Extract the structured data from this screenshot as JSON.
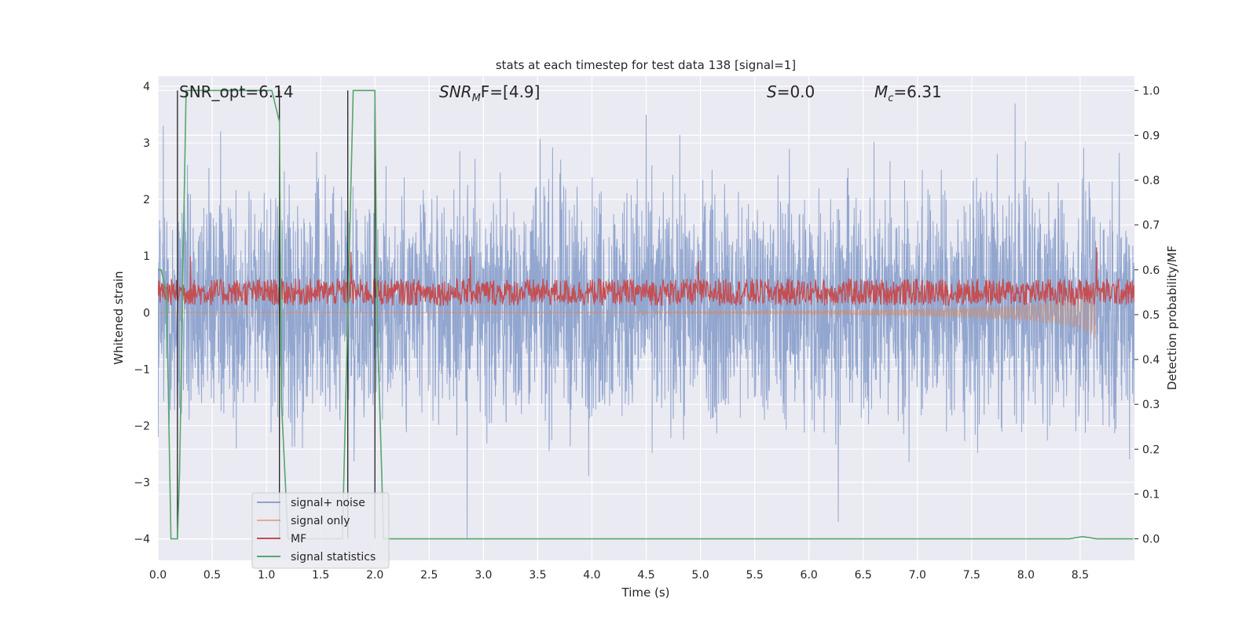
{
  "chart_data": {
    "type": "line",
    "title": "stats at each timestep for test data 138 [signal=1]",
    "xlabel": "Time (s)",
    "ylabel_left": "Whitened strain",
    "ylabel_right": "Detection probability/MF",
    "xlim": [
      0,
      9.0
    ],
    "ylim_left": [
      -4.38,
      4.18
    ],
    "ylim_right": [
      -0.048,
      1.032
    ],
    "x_ticks": [
      0.0,
      0.5,
      1.0,
      1.5,
      2.0,
      2.5,
      3.0,
      3.5,
      4.0,
      4.5,
      5.0,
      5.5,
      6.0,
      6.5,
      7.0,
      7.5,
      8.0,
      8.5
    ],
    "x_tick_labels": [
      "0.0",
      "0.5",
      "1.0",
      "1.5",
      "2.0",
      "2.5",
      "3.0",
      "3.5",
      "4.0",
      "4.5",
      "5.0",
      "5.5",
      "6.0",
      "6.5",
      "7.0",
      "7.5",
      "8.0",
      "8.5"
    ],
    "y_left_ticks": [
      4,
      3,
      2,
      1,
      0,
      -1,
      -2,
      -3,
      -4
    ],
    "y_left_tick_labels": [
      "4",
      "3",
      "2",
      "1",
      "0",
      "−1",
      "−2",
      "−3",
      "−4"
    ],
    "y_right_ticks": [
      1.0,
      0.9,
      0.8,
      0.7,
      0.6,
      0.5,
      0.4,
      0.3,
      0.2,
      0.1,
      0.0
    ],
    "y_right_tick_labels": [
      "1.0",
      "0.9",
      "0.8",
      "0.7",
      "0.6",
      "0.5",
      "0.4",
      "0.3",
      "0.2",
      "0.1",
      "0.0"
    ],
    "grid": true,
    "legend_position": "lower-left",
    "annotations": {
      "snr_opt": "SNR_opt=6.14",
      "snr_mf_main": "SNR",
      "snr_mf_sub": "M",
      "snr_mf_rest": "F=[4.9]",
      "s_main": "S",
      "s_rest": "=0.0",
      "mc_main": "M",
      "mc_sub": "c",
      "mc_rest": "=6.31"
    },
    "colors": {
      "signal_noise": "#8da2cc",
      "signal_only": "#dd8452",
      "mf": "#c44e52",
      "signal_statistics": "#55a868",
      "axes_bg": "#eaeaf2",
      "grid": "#ffffff",
      "vline": "#222222"
    },
    "series": [
      {
        "name": "signal+ noise",
        "axis": "left",
        "kind": "noise_band",
        "x_range": [
          0,
          9.0
        ],
        "typical_band": [
          -1.7,
          2.0
        ],
        "extremes": [
          {
            "x": 2.85,
            "y": -4.0
          },
          {
            "x": 6.27,
            "y": -3.7
          },
          {
            "x": 7.9,
            "y": 3.7
          },
          {
            "x": 4.5,
            "y": 3.5
          },
          {
            "x": 0.05,
            "y": 3.3
          }
        ]
      },
      {
        "name": "signal only",
        "axis": "left",
        "kind": "chirp",
        "x": [
          0,
          4.0,
          5.0,
          6.0,
          7.0,
          7.5,
          8.0,
          8.3,
          8.5,
          8.6,
          8.65
        ],
        "amplitude": [
          0.01,
          0.01,
          0.02,
          0.04,
          0.07,
          0.1,
          0.15,
          0.22,
          0.3,
          0.42,
          0.5
        ]
      },
      {
        "name": "MF",
        "axis": "right",
        "kind": "noisy_level",
        "level": 0.55,
        "spread": 0.03,
        "peaks": [
          {
            "x": 0.3,
            "y": 0.63
          },
          {
            "x": 1.78,
            "y": 0.64
          },
          {
            "x": 2.88,
            "y": 0.63
          },
          {
            "x": 4.98,
            "y": 0.62
          },
          {
            "x": 8.65,
            "y": 0.65
          }
        ]
      },
      {
        "name": "signal statistics",
        "axis": "right",
        "kind": "line",
        "x": [
          0.0,
          0.03,
          0.08,
          0.12,
          0.18,
          0.2,
          0.23,
          0.26,
          0.3,
          0.7,
          1.0,
          1.05,
          1.12,
          1.14,
          1.2,
          1.5,
          1.7,
          1.8,
          1.92,
          2.0,
          2.02,
          2.08,
          2.3,
          8.4,
          8.52,
          8.58,
          8.65,
          8.99
        ],
        "y": [
          0.6,
          0.6,
          0.55,
          0.0,
          0.0,
          0.15,
          0.6,
          1.0,
          1.0,
          1.0,
          1.0,
          1.0,
          0.93,
          0.3,
          0.0,
          0.0,
          0.0,
          1.0,
          1.0,
          1.0,
          0.5,
          0.0,
          0.0,
          0.0,
          0.005,
          0.003,
          0.0,
          0.0
        ]
      }
    ],
    "vertical_lines_x": [
      0.18,
      1.12,
      1.75,
      2.0
    ]
  },
  "legend": {
    "items": [
      {
        "label": "signal+ noise",
        "color_key": "signal_noise"
      },
      {
        "label": "signal only",
        "color_key": "signal_only"
      },
      {
        "label": "MF",
        "color_key": "mf"
      },
      {
        "label": "signal statistics",
        "color_key": "signal_statistics"
      }
    ]
  }
}
